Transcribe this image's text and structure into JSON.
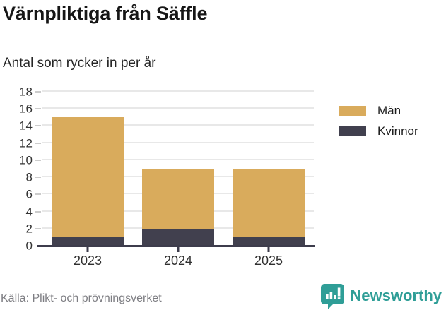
{
  "header": {
    "title": "Värnpliktiga från Säffle",
    "subtitle": "Antal som rycker in per år"
  },
  "chart_data": {
    "type": "bar",
    "stacked": true,
    "title": "Värnpliktiga från Säffle",
    "subtitle": "Antal som rycker in per år",
    "categories": [
      "2023",
      "2024",
      "2025"
    ],
    "series": [
      {
        "name": "Kvinnor",
        "values": [
          1,
          2,
          1
        ],
        "color": "#41404e"
      },
      {
        "name": "Män",
        "values": [
          14,
          7,
          8
        ],
        "color": "#d9ab5c"
      }
    ],
    "totals": [
      15,
      9,
      9
    ],
    "xlabel": "",
    "ylabel": "",
    "ylim": [
      0,
      18
    ],
    "ytick_step": 2,
    "grid": "horizontal",
    "legend_position": "right"
  },
  "legend": {
    "items": [
      {
        "label": "Män",
        "color": "#d9ab5c"
      },
      {
        "label": "Kvinnor",
        "color": "#41404e"
      }
    ]
  },
  "footer": {
    "source": "Källa: Plikt- och prövningsverket",
    "brand": "Newsworthy",
    "brand_color": "#2f9e97"
  }
}
